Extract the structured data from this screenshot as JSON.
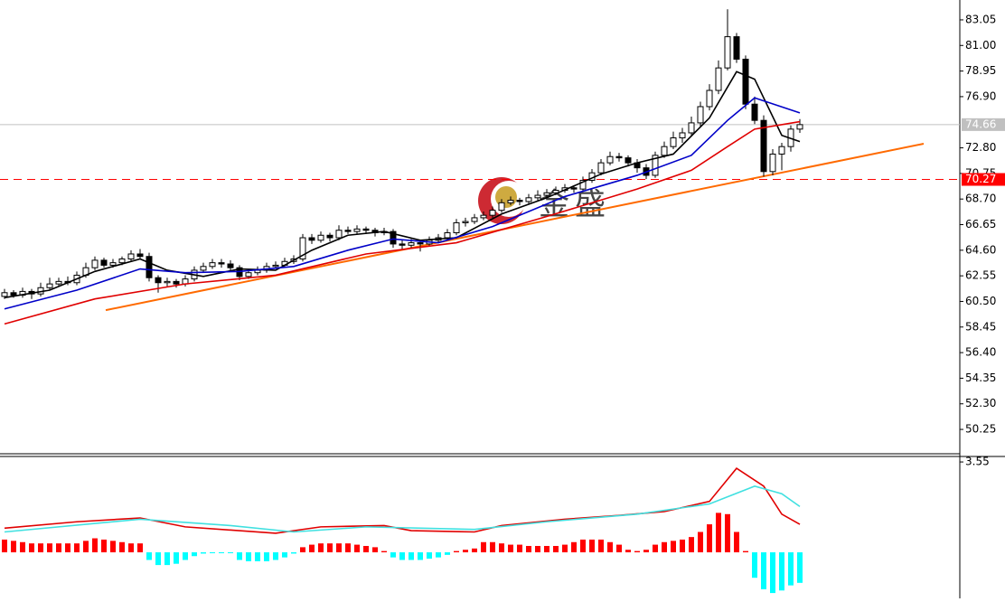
{
  "chart_data": [
    {
      "type": "candlestick",
      "watermark": "金盛",
      "up_color": "#ffffff",
      "down_color": "#000000",
      "edge_color": "#000000",
      "ylim": [
        48.3,
        84.64
      ],
      "yticks": [
        83.05,
        {
          "value": 81,
          "label": "81.00"
        },
        78.95,
        {
          "value": 76.9,
          "label": "76.90"
        },
        {
          "value": 72.8,
          "label": "72.80"
        },
        70.75,
        {
          "value": 68.7,
          "label": "68.70"
        },
        66.65,
        {
          "value": 64.6,
          "label": "64.60"
        },
        62.55,
        {
          "value": 60.5,
          "label": "60.50"
        },
        58.45,
        {
          "value": 56.4,
          "label": "56.40"
        },
        54.35,
        {
          "value": 52.3,
          "label": "52.30"
        },
        50.25
      ],
      "ohlc": [
        [
          60.9,
          61.5,
          60.7,
          61.2
        ],
        [
          61.2,
          61.4,
          60.8,
          61.0
        ],
        [
          61.0,
          61.6,
          60.8,
          61.3
        ],
        [
          61.3,
          61.5,
          60.7,
          61.1
        ],
        [
          61.1,
          62.0,
          60.9,
          61.6
        ],
        [
          61.6,
          62.4,
          61.4,
          61.9
        ],
        [
          61.9,
          62.4,
          61.7,
          62.1
        ],
        [
          62.1,
          62.5,
          61.8,
          62.0
        ],
        [
          62.0,
          62.9,
          61.8,
          62.6
        ],
        [
          62.6,
          63.6,
          62.4,
          63.2
        ],
        [
          63.2,
          64.1,
          63.0,
          63.8
        ],
        [
          63.8,
          64.0,
          63.2,
          63.4
        ],
        [
          63.4,
          63.9,
          63.2,
          63.6
        ],
        [
          63.6,
          64.1,
          63.4,
          63.9
        ],
        [
          63.9,
          64.6,
          63.7,
          64.3
        ],
        [
          64.3,
          64.7,
          63.9,
          64.1
        ],
        [
          64.1,
          64.4,
          62.1,
          62.4
        ],
        [
          62.4,
          62.6,
          61.2,
          62.0
        ],
        [
          62.0,
          62.4,
          61.7,
          62.1
        ],
        [
          62.1,
          62.3,
          61.6,
          61.9
        ],
        [
          61.9,
          62.6,
          61.7,
          62.3
        ],
        [
          62.3,
          63.3,
          62.1,
          63.0
        ],
        [
          63.0,
          63.6,
          62.8,
          63.3
        ],
        [
          63.3,
          63.9,
          63.1,
          63.6
        ],
        [
          63.6,
          63.9,
          63.2,
          63.5
        ],
        [
          63.5,
          63.8,
          62.9,
          63.2
        ],
        [
          63.2,
          63.4,
          62.2,
          62.5
        ],
        [
          62.5,
          63.1,
          62.3,
          62.8
        ],
        [
          62.8,
          63.3,
          62.6,
          63.0
        ],
        [
          63.0,
          63.6,
          62.8,
          63.3
        ],
        [
          63.3,
          63.7,
          63.1,
          63.4
        ],
        [
          63.4,
          64.0,
          63.2,
          63.7
        ],
        [
          63.7,
          64.2,
          63.5,
          63.9
        ],
        [
          63.9,
          65.9,
          63.7,
          65.6
        ],
        [
          65.6,
          65.9,
          65.1,
          65.4
        ],
        [
          65.4,
          66.1,
          65.2,
          65.8
        ],
        [
          65.8,
          66.0,
          65.3,
          65.6
        ],
        [
          65.6,
          66.6,
          65.4,
          66.2
        ],
        [
          66.2,
          66.5,
          65.9,
          66.1
        ],
        [
          66.1,
          66.6,
          65.9,
          66.3
        ],
        [
          66.3,
          66.5,
          65.9,
          66.2
        ],
        [
          66.2,
          66.4,
          65.7,
          66.0
        ],
        [
          66.0,
          66.4,
          65.8,
          66.1
        ],
        [
          66.1,
          66.3,
          64.8,
          65.1
        ],
        [
          65.1,
          65.4,
          64.7,
          65.0
        ],
        [
          65.0,
          65.5,
          64.8,
          65.2
        ],
        [
          65.2,
          65.4,
          64.5,
          65.1
        ],
        [
          65.1,
          65.7,
          64.9,
          65.4
        ],
        [
          65.4,
          65.9,
          65.2,
          65.6
        ],
        [
          65.6,
          66.3,
          65.4,
          66.0
        ],
        [
          66.0,
          67.1,
          65.8,
          66.8
        ],
        [
          66.8,
          67.2,
          66.5,
          66.9
        ],
        [
          66.9,
          67.5,
          66.7,
          67.2
        ],
        [
          67.2,
          67.7,
          67.0,
          67.4
        ],
        [
          67.4,
          68.1,
          67.2,
          67.8
        ],
        [
          67.8,
          68.7,
          67.6,
          68.4
        ],
        [
          68.4,
          68.9,
          68.2,
          68.6
        ],
        [
          68.6,
          68.8,
          68.2,
          68.5
        ],
        [
          68.5,
          69.1,
          68.3,
          68.8
        ],
        [
          68.8,
          69.4,
          68.6,
          69.0
        ],
        [
          69.0,
          69.5,
          68.8,
          69.2
        ],
        [
          69.2,
          69.7,
          69.0,
          69.4
        ],
        [
          69.4,
          69.9,
          69.2,
          69.6
        ],
        [
          69.6,
          69.8,
          69.2,
          69.5
        ],
        [
          69.5,
          70.5,
          69.3,
          70.2
        ],
        [
          70.2,
          71.1,
          70.0,
          70.8
        ],
        [
          70.8,
          71.9,
          70.6,
          71.6
        ],
        [
          71.6,
          72.5,
          71.4,
          72.1
        ],
        [
          72.1,
          72.4,
          71.7,
          72.0
        ],
        [
          72.0,
          72.2,
          71.3,
          71.6
        ],
        [
          71.6,
          71.9,
          70.8,
          71.2
        ],
        [
          71.2,
          71.5,
          70.3,
          70.6
        ],
        [
          70.6,
          72.5,
          70.4,
          72.2
        ],
        [
          72.2,
          73.3,
          72.0,
          72.9
        ],
        [
          72.9,
          74.1,
          72.7,
          73.6
        ],
        [
          73.6,
          74.4,
          73.2,
          74.0
        ],
        [
          74.0,
          75.3,
          73.8,
          74.8
        ],
        [
          74.8,
          76.5,
          74.5,
          76.1
        ],
        [
          76.1,
          77.9,
          75.8,
          77.4
        ],
        [
          77.4,
          79.8,
          77.1,
          79.2
        ],
        [
          79.2,
          83.9,
          79.0,
          81.7
        ],
        [
          81.7,
          82.0,
          79.6,
          79.9
        ],
        [
          79.9,
          80.2,
          75.9,
          76.3
        ],
        [
          76.3,
          76.9,
          74.7,
          75.0
        ],
        [
          75.0,
          75.4,
          70.5,
          70.9
        ],
        [
          70.9,
          72.7,
          70.6,
          72.3
        ],
        [
          72.3,
          73.2,
          71.0,
          72.9
        ],
        [
          72.9,
          74.6,
          72.5,
          74.3
        ],
        [
          74.3,
          75.1,
          74.0,
          74.66
        ]
      ],
      "lines": [
        {
          "color": "#000000",
          "x": [
            0,
            5,
            10,
            15,
            18,
            22,
            26,
            30,
            34,
            38,
            42,
            46,
            50,
            55,
            60,
            66,
            70,
            74,
            78,
            81,
            83,
            86,
            88
          ],
          "values": [
            60.8,
            61.4,
            62.9,
            63.9,
            63.0,
            62.5,
            63.1,
            63.0,
            64.6,
            65.8,
            66.1,
            65.4,
            65.6,
            67.5,
            68.8,
            70.7,
            71.6,
            72.3,
            75.2,
            78.9,
            78.3,
            73.8,
            73.3
          ]
        },
        {
          "color": "#0000c8",
          "x": [
            0,
            8,
            15,
            20,
            26,
            32,
            38,
            43,
            48,
            54,
            62,
            70,
            76,
            80,
            83,
            88
          ],
          "values": [
            59.9,
            61.4,
            63.1,
            62.8,
            62.9,
            63.3,
            64.6,
            65.5,
            65.2,
            66.5,
            68.9,
            70.6,
            72.2,
            75.0,
            76.8,
            75.6
          ]
        },
        {
          "color": "#e00000",
          "x": [
            0,
            10,
            20,
            30,
            40,
            50,
            60,
            70,
            76,
            80,
            83,
            88
          ],
          "values": [
            58.7,
            60.7,
            61.9,
            62.6,
            64.3,
            65.2,
            67.3,
            69.5,
            71.0,
            72.9,
            74.3,
            74.9
          ]
        }
      ],
      "trendline": {
        "color": "#ff6a00",
        "x": [
          11.2,
          101.7
        ],
        "values": [
          59.8,
          73.13
        ]
      },
      "levels": [
        {
          "value": 74.66,
          "color": "#c0c0c0",
          "text_color": "#ffffff",
          "dashed": false
        },
        {
          "value": 70.27,
          "color": "#ff0000",
          "text_color": "#ffffff",
          "dashed": true
        }
      ]
    },
    {
      "type": "macd",
      "ylim": [
        -1.81,
        3.73
      ],
      "yticks": [
        3.55
      ],
      "histogram": {
        "pos_color": "#ff0000",
        "neg_color": "#00ffff",
        "values": [
          0.5,
          0.45,
          0.4,
          0.35,
          0.35,
          0.35,
          0.35,
          0.35,
          0.35,
          0.45,
          0.55,
          0.5,
          0.45,
          0.4,
          0.35,
          0.35,
          -0.3,
          -0.5,
          -0.5,
          -0.45,
          -0.3,
          -0.15,
          -0.05,
          -0.02,
          -0.02,
          -0.02,
          -0.3,
          -0.35,
          -0.35,
          -0.35,
          -0.3,
          -0.2,
          -0.05,
          0.2,
          0.3,
          0.35,
          0.35,
          0.35,
          0.35,
          0.3,
          0.25,
          0.2,
          0.05,
          -0.2,
          -0.3,
          -0.3,
          -0.3,
          -0.25,
          -0.2,
          -0.1,
          0.05,
          0.1,
          0.15,
          0.4,
          0.4,
          0.35,
          0.3,
          0.3,
          0.25,
          0.25,
          0.25,
          0.25,
          0.3,
          0.4,
          0.5,
          0.5,
          0.5,
          0.4,
          0.3,
          0.1,
          0.05,
          0.1,
          0.3,
          0.4,
          0.45,
          0.5,
          0.6,
          0.8,
          1.1,
          1.55,
          1.5,
          0.8,
          0.05,
          -1.0,
          -1.45,
          -1.6,
          -1.5,
          -1.3,
          -1.2
        ]
      },
      "lines": [
        {
          "color": "#e00000",
          "x": [
            0,
            8,
            15,
            20,
            30,
            35,
            42,
            45,
            52,
            55,
            62,
            68,
            73,
            78,
            81,
            84,
            86,
            88
          ],
          "values": [
            0.95,
            1.2,
            1.35,
            1.0,
            0.75,
            1.0,
            1.05,
            0.85,
            0.8,
            1.05,
            1.3,
            1.45,
            1.6,
            2.0,
            3.3,
            2.6,
            1.5,
            1.1
          ]
        },
        {
          "color": "#40e0e0",
          "x": [
            0,
            15,
            25,
            32,
            40,
            52,
            60,
            70,
            78,
            83,
            86,
            88
          ],
          "values": [
            0.8,
            1.3,
            1.05,
            0.8,
            1.0,
            0.9,
            1.2,
            1.5,
            1.9,
            2.6,
            2.3,
            1.8
          ]
        }
      ]
    }
  ]
}
